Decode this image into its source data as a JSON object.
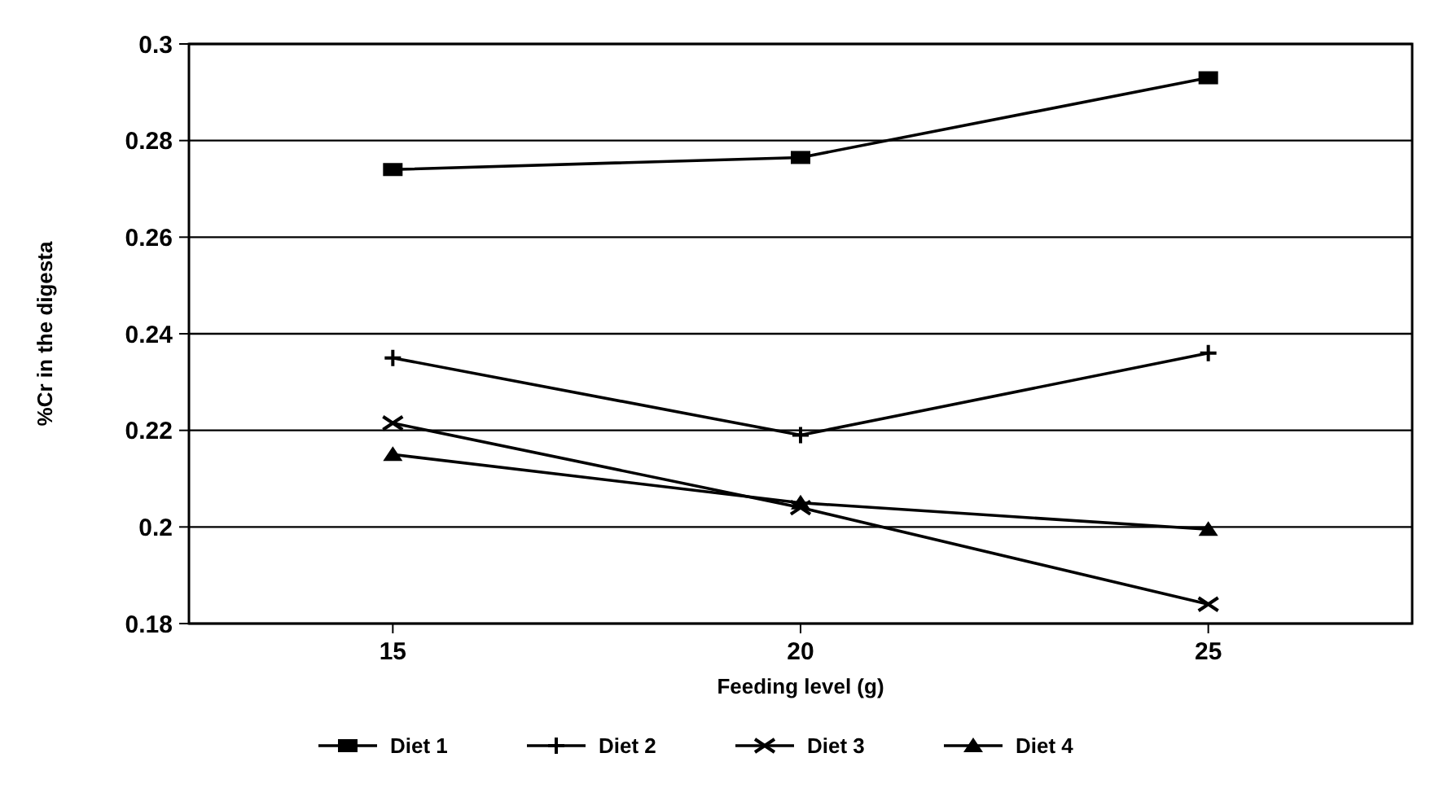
{
  "chart_data": {
    "type": "line",
    "xlabel": "Feeding level (g)",
    "ylabel": "%Cr in the digesta",
    "x": [
      15,
      20,
      25
    ],
    "xlim": [
      12.5,
      27.5
    ],
    "xticks": [
      15,
      20,
      25
    ],
    "ylim": [
      0.18,
      0.3
    ],
    "yticks": [
      0.18,
      0.2,
      0.22,
      0.24,
      0.26,
      0.28,
      0.3
    ],
    "grid": "y",
    "legend": "bottom",
    "series": [
      {
        "name": "Diet 1",
        "color": "#000000",
        "marker": "square",
        "values": [
          0.274,
          0.2765,
          0.293
        ]
      },
      {
        "name": "Diet 2",
        "color": "#000000",
        "marker": "cross",
        "values": [
          0.235,
          0.219,
          0.236
        ]
      },
      {
        "name": "Diet 3",
        "color": "#000000",
        "marker": "cross",
        "values": [
          0.2215,
          0.204,
          0.184
        ]
      },
      {
        "name": "Diet 4",
        "color": "#000000",
        "marker": "triangle",
        "values": [
          0.215,
          0.205,
          0.1995
        ]
      }
    ]
  }
}
